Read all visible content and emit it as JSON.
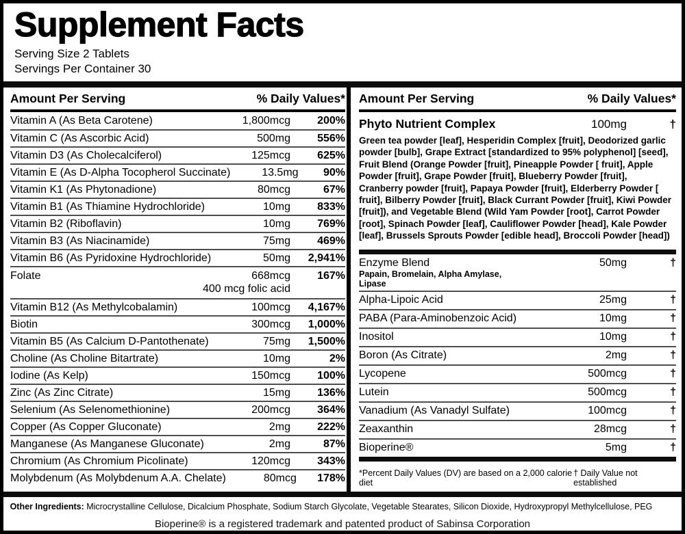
{
  "header": {
    "title": "Supplement Facts",
    "serving_size": "Serving Size 2 Tablets",
    "servings_per_container": "Servings Per Container 30"
  },
  "column_headers": {
    "amount": "Amount Per Serving",
    "daily_values": "% Daily Values*"
  },
  "left_rows": [
    {
      "name": "Vitamin A (As Beta Carotene)",
      "amount": "1,800mcg",
      "dv": "200%"
    },
    {
      "name": "Vitamin C (As Ascorbic Acid)",
      "amount": "500mg",
      "dv": "556%"
    },
    {
      "name": "Vitamin D3 (As Cholecalciferol)",
      "amount": "125mcg",
      "dv": "625%"
    },
    {
      "name": "Vitamin E (As D-Alpha Tocopherol Succinate)",
      "amount": "13.5mg",
      "dv": "90%"
    },
    {
      "name": "Vitamin K1 (As Phytonadione)",
      "amount": "80mcg",
      "dv": "67%"
    },
    {
      "name": "Vitamin B1 (As Thiamine Hydrochloride)",
      "amount": "10mg",
      "dv": "833%"
    },
    {
      "name": "Vitamin B2 (Riboflavin)",
      "amount": "10mg",
      "dv": "769%"
    },
    {
      "name": "Vitamin B3 (As Niacinamide)",
      "amount": "75mg",
      "dv": "469%"
    },
    {
      "name": "Vitamin B6 (As Pyridoxine Hydrochloride)",
      "amount": "50mg",
      "dv": "2,941%"
    },
    {
      "name": "Folate",
      "amount": "668mcg",
      "dv": "167%",
      "sub_amount": "400 mcg folic acid"
    },
    {
      "name": "Vitamin B12 (As Methylcobalamin)",
      "amount": "100mcg",
      "dv": "4,167%"
    },
    {
      "name": "Biotin",
      "amount": "300mcg",
      "dv": "1,000%"
    },
    {
      "name": "Vitamin B5 (As Calcium D-Pantothenate)",
      "amount": "75mg",
      "dv": "1,500%"
    },
    {
      "name": "Choline (As Choline Bitartrate)",
      "amount": "10mg",
      "dv": "2%"
    },
    {
      "name": "Iodine (As Kelp)",
      "amount": "150mcg",
      "dv": "100%"
    },
    {
      "name": "Zinc (As Zinc Citrate)",
      "amount": "15mg",
      "dv": "136%"
    },
    {
      "name": "Selenium (As Selenomethionine)",
      "amount": "200mcg",
      "dv": "364%"
    },
    {
      "name": "Copper (As Copper Gluconate)",
      "amount": "2mg",
      "dv": "222%"
    },
    {
      "name": "Manganese (As Manganese Gluconate)",
      "amount": "2mg",
      "dv": "87%"
    },
    {
      "name": "Chromium (As Chromium Picolinate)",
      "amount": "120mcg",
      "dv": "343%"
    },
    {
      "name": "Molybdenum (As Molybdenum A.A. Chelate)",
      "amount": "80mcg",
      "dv": "178%"
    }
  ],
  "right": {
    "phyto": {
      "name": "Phyto Nutrient Complex",
      "amount": "100mg",
      "dv": "†",
      "description": "Green tea powder [leaf], Hesperidin Complex [fruit], Deodorized garlic powder [bulb], Grape Extract [standardized to 95% polyphenol] [seed], Fruit Blend (Orange Powder [fruit], Pineapple Powder [ fruit], Apple Powder [fruit], Grape Powder [fruit], Blueberry Powder [fruit], Cranberry powder [fruit], Papaya Powder [fruit], Elderberry Powder [ fruit], Bilberry Powder [fruit], Black Currant Powder [fruit], Kiwi Powder [fruit]), and Vegetable Blend (Wild Yam Powder [root], Carrot Powder [root], Spinach Powder [leaf], Cauliflower Powder [head], Kale Powder [leaf], Brussels Sprouts Powder [edible head], Broccoli Powder [head])"
    },
    "rows": [
      {
        "name": "Enzyme Blend",
        "sub_name": "Papain, Bromelain, Alpha Amylase, Lipase",
        "amount": "50mg",
        "dv": "†"
      },
      {
        "name": "Alpha-Lipoic Acid",
        "amount": "25mg",
        "dv": "†"
      },
      {
        "name": "PABA (Para-Aminobenzoic Acid)",
        "amount": "10mg",
        "dv": "†"
      },
      {
        "name": "Inositol",
        "amount": "10mg",
        "dv": "†"
      },
      {
        "name": "Boron (As Citrate)",
        "amount": "2mg",
        "dv": "†"
      },
      {
        "name": "Lycopene",
        "amount": "500mcg",
        "dv": "†"
      },
      {
        "name": "Lutein",
        "amount": "500mcg",
        "dv": "†"
      },
      {
        "name": "Vanadium (As Vanadyl Sulfate)",
        "amount": "100mcg",
        "dv": "†"
      },
      {
        "name": "Zeaxanthin",
        "amount": "28mcg",
        "dv": "†"
      },
      {
        "name": "Bioperine®",
        "amount": "5mg",
        "dv": "†"
      }
    ],
    "footnotes": {
      "percent_dv": "*Percent Daily Values (DV) are based on a 2,000 calorie diet",
      "dagger": "† Daily Value not established"
    }
  },
  "footer": {
    "other_ingredients_label": "Other Ingredients:",
    "other_ingredients": " Microcrystalline Cellulose, Dicalcium Phosphate, Sodium Starch Glycolate, Vegetable Stearates, Silicon Dioxide, Hydroxypropyl Methylcellulose, PEG",
    "trademark": "Bioperine® is a registered trademark and patented product of Sabinsa Corporation"
  },
  "colors": {
    "ink": "#000000",
    "paper": "#ffffff",
    "hairline": "#4e4e4e"
  }
}
